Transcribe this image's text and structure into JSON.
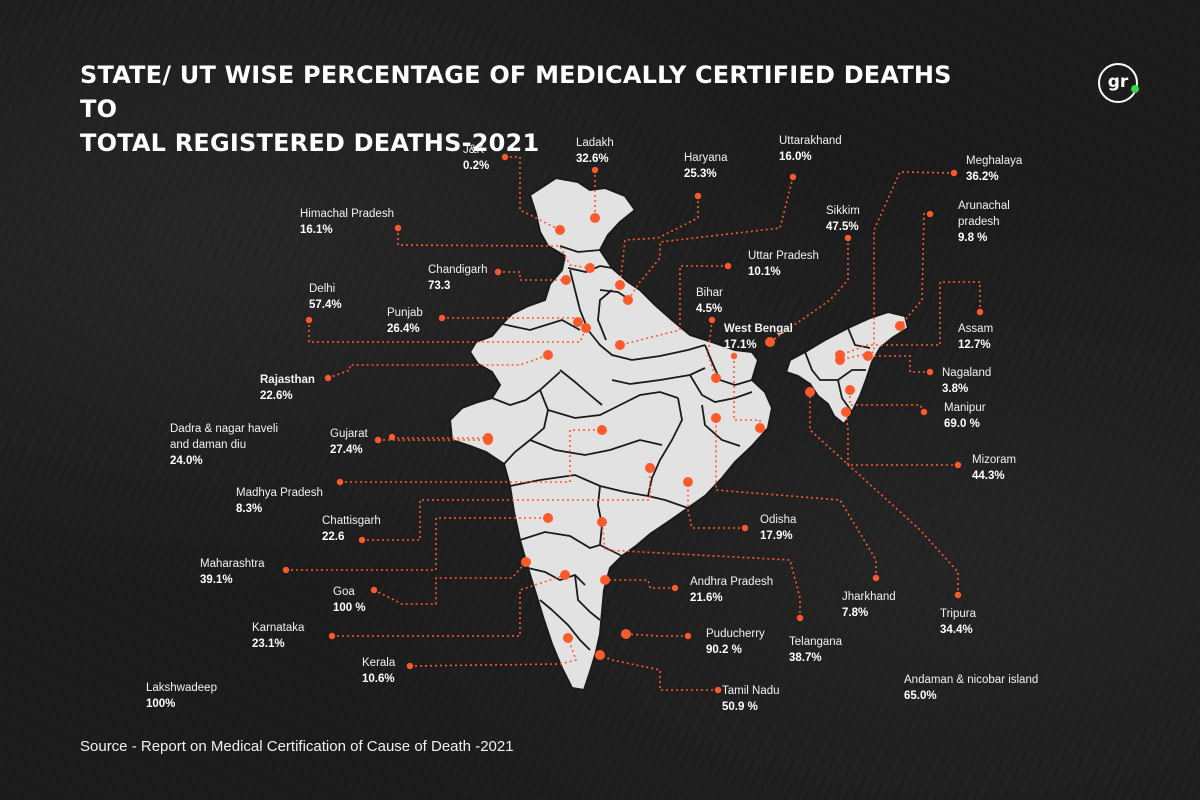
{
  "title": {
    "line1": "STATE/ UT WISE PERCENTAGE OF MEDICALLY CERTIFIED DEATHS TO",
    "line2": "TOTAL REGISTERED DEATHS-2021"
  },
  "logo": {
    "text": "gr",
    "dot_color": "#3ed24a"
  },
  "colors": {
    "map_fill": "#e2e2e2",
    "border": "#1a1a1a",
    "leader": "#ff5a2c",
    "background": "#1b1b1b"
  },
  "labels": [
    {
      "key": "jk",
      "name": "J&K",
      "value": "0.2%"
    },
    {
      "key": "ladakh",
      "name": "Ladakh",
      "value": "32.6%"
    },
    {
      "key": "haryana",
      "name": "Haryana",
      "value": "25.3%"
    },
    {
      "key": "uttarakhand",
      "name": "Uttarakhand",
      "value": "16.0%"
    },
    {
      "key": "meghalaya",
      "name": "Meghalaya",
      "value": "36.2%"
    },
    {
      "key": "himachal",
      "name": "Himachal Pradesh",
      "value": "16.1%"
    },
    {
      "key": "sikkim",
      "name": "Sikkim",
      "value": "47.5%"
    },
    {
      "key": "arunachal",
      "name": "Arunachal\npradesh",
      "value": "9.8 %"
    },
    {
      "key": "chandigarh",
      "name": "Chandigarh",
      "value": "73.3"
    },
    {
      "key": "up",
      "name": "Uttar Pradesh",
      "value": "10.1%"
    },
    {
      "key": "delhi",
      "name": "Delhi",
      "value": "57.4%"
    },
    {
      "key": "bihar",
      "name": "Bihar",
      "value": "4.5%"
    },
    {
      "key": "punjab",
      "name": "Punjab",
      "value": "26.4%"
    },
    {
      "key": "wb",
      "name": "West Bengal",
      "value": "17.1%"
    },
    {
      "key": "assam",
      "name": "Assam",
      "value": "12.7%"
    },
    {
      "key": "rajasthan",
      "name": "Rajasthan",
      "value": "22.6%"
    },
    {
      "key": "nagaland",
      "name": "Nagaland",
      "value": "3.8%"
    },
    {
      "key": "manipur",
      "name": "Manipur",
      "value": "69.0 %"
    },
    {
      "key": "dnh",
      "name": "Dadra & nagar haveli\nand daman diu",
      "value": "24.0%"
    },
    {
      "key": "gujarat",
      "name": "Gujarat",
      "value": "27.4%"
    },
    {
      "key": "mizoram",
      "name": "Mizoram",
      "value": "44.3%"
    },
    {
      "key": "mp",
      "name": "Madhya Pradesh",
      "value": "8.3%"
    },
    {
      "key": "chhattisgarh",
      "name": "Chattisgarh",
      "value": "22.6"
    },
    {
      "key": "odisha",
      "name": "Odisha",
      "value": "17.9%"
    },
    {
      "key": "maharashtra",
      "name": "Maharashtra",
      "value": "39.1%"
    },
    {
      "key": "goa",
      "name": "Goa",
      "value": "100 %"
    },
    {
      "key": "ap",
      "name": "Andhra Pradesh",
      "value": "21.6%"
    },
    {
      "key": "jharkhand",
      "name": "Jharkhand",
      "value": "7.8%"
    },
    {
      "key": "tripura",
      "name": "Tripura",
      "value": "34.4%"
    },
    {
      "key": "karnataka",
      "name": "Karnataka",
      "value": "23.1%"
    },
    {
      "key": "puducherry",
      "name": "Puducherry",
      "value": "90.2 %"
    },
    {
      "key": "telangana",
      "name": "Telangana",
      "value": "38.7%"
    },
    {
      "key": "kerala",
      "name": "Kerala",
      "value": "10.6%"
    },
    {
      "key": "andaman",
      "name": "Andaman & nicobar  island",
      "value": "65.0%"
    },
    {
      "key": "tamilnadu",
      "name": "Tamil Nadu",
      "value": "50.9 %"
    },
    {
      "key": "lakshadweep",
      "name": "Lakshwadeep",
      "value": "100%"
    }
  ],
  "source": "Source - Report on Medical Certification of Cause of Death -2021"
}
